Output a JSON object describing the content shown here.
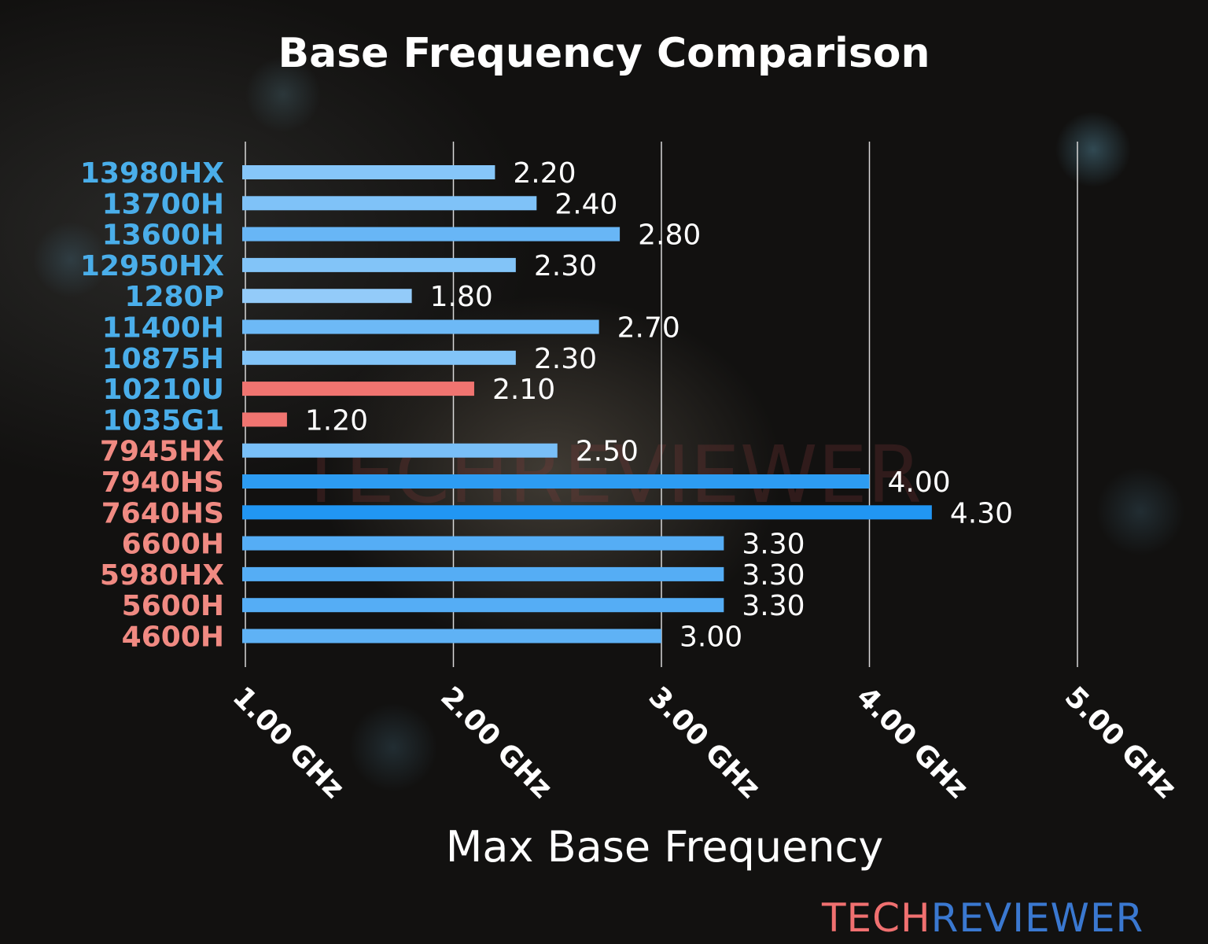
{
  "chart_data": {
    "type": "bar",
    "orientation": "horizontal",
    "title": "Base Frequency Comparison",
    "xlabel": "Max Base Frequency",
    "ylabel": "",
    "xlim": [
      1.0,
      5.0
    ],
    "xticks": [
      1,
      2,
      3,
      4,
      5
    ],
    "xtick_labels": [
      "1.00 GHz",
      "2.00 GHz",
      "3.00 GHz",
      "4.00 GHz",
      "5.00 GHz"
    ],
    "grid": "vertical",
    "categories": [
      "13980HX",
      "13700H",
      "13600H",
      "12950HX",
      "1280P",
      "11400H",
      "10875H",
      "10210U",
      "1035G1",
      "7945HX",
      "7940HS",
      "7640HS",
      "6600H",
      "5980HX",
      "5600H",
      "4600H"
    ],
    "values": [
      2.2,
      2.4,
      2.8,
      2.3,
      1.8,
      2.7,
      2.3,
      2.1,
      1.2,
      2.5,
      4.0,
      4.3,
      3.3,
      3.3,
      3.3,
      3.0
    ],
    "data_labels": [
      "2.20",
      "2.40",
      "2.80",
      "2.30",
      "1.80",
      "2.70",
      "2.30",
      "2.10",
      "1.20",
      "2.50",
      "4.00",
      "4.30",
      "3.30",
      "3.30",
      "3.30",
      "3.00"
    ],
    "bar_colors": [
      "#86c6f9",
      "#7fc2f8",
      "#68b6f6",
      "#82c4f8",
      "#93cbf9",
      "#6db9f6",
      "#82c4f8",
      "#f07470",
      "#f07470",
      "#79bff7",
      "#2d9cf2",
      "#2196f3",
      "#55adf5",
      "#55adf5",
      "#55adf5",
      "#5fb2f5"
    ],
    "label_colors": [
      "#4aaeea",
      "#4aaeea",
      "#4aaeea",
      "#4aaeea",
      "#4aaeea",
      "#4aaeea",
      "#4aaeea",
      "#4aaeea",
      "#4aaeea",
      "#f08a82",
      "#f08a82",
      "#f08a82",
      "#f08a82",
      "#f08a82",
      "#f08a82",
      "#f08a82"
    ]
  },
  "watermark": "TECHREVIEWER",
  "logo": {
    "part1": "TECH",
    "part2": "REVIEWER",
    "color1": "#f07070",
    "color2": "#3a78d0"
  }
}
